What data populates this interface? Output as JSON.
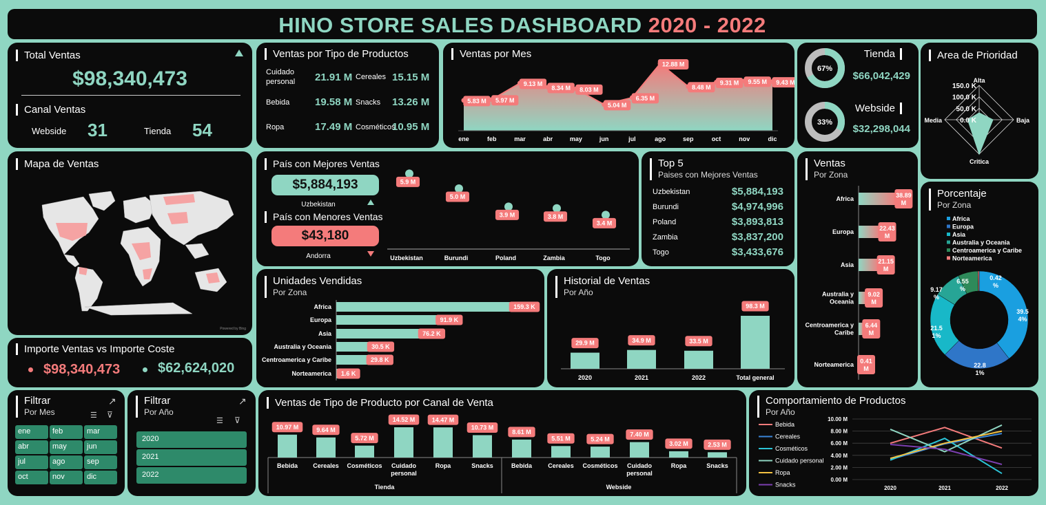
{
  "title": {
    "main": "HINO STORE SALES DASHBOARD",
    "years": "2020 - 2022"
  },
  "colors": {
    "mint": "#8fd6c2",
    "pink": "#f47b7b",
    "panel": "#0b0b0b",
    "frame": "#8fd6c2"
  },
  "total": {
    "header": "Total Ventas",
    "value": "$98,340,473",
    "trend_icon": "triangle-up-icon",
    "canal_header": "Canal Ventas",
    "webside_label": "Webside",
    "webside_value": "31",
    "tienda_label": "Tienda",
    "tienda_value": "54"
  },
  "tipo": {
    "header": "Ventas por Tipo de Productos",
    "items": [
      {
        "label": "Cuidado personal",
        "value": "21.91 M"
      },
      {
        "label": "Cereales",
        "value": "15.15 M"
      },
      {
        "label": "Bebida",
        "value": "19.58 M"
      },
      {
        "label": "Snacks",
        "value": "13.26 M"
      },
      {
        "label": "Ropa",
        "value": "17.49 M"
      },
      {
        "label": "Cosméticos",
        "value": "10.95 M"
      }
    ]
  },
  "canal_cards": [
    {
      "label": "Tienda",
      "pct": "67%",
      "value": "$66,042,429",
      "fraction": 0.67
    },
    {
      "label": "Webside",
      "pct": "33%",
      "value": "$32,298,044",
      "fraction": 0.33
    }
  ],
  "mapa": {
    "header": "Mapa de Ventas",
    "credit": "Powered by Bing"
  },
  "importe": {
    "header": "Importe Ventas vs Importe Coste",
    "ventas": "$98,340,473",
    "coste": "$62,624,020"
  },
  "mejores": {
    "header_best": "País con Mejores Ventas",
    "best_value": "$5,884,193",
    "best_country": "Uzbekistan",
    "header_worst": "País con Menores Ventas",
    "worst_value": "$43,180",
    "worst_country": "Andorra"
  },
  "top5": {
    "header": "Top 5",
    "subheader": "Paises con Mejores Ventas",
    "rows": [
      {
        "country": "Uzbekistan",
        "value": "$5,884,193"
      },
      {
        "country": "Burundi",
        "value": "$4,974,996"
      },
      {
        "country": "Poland",
        "value": "$3,893,813"
      },
      {
        "country": "Zambia",
        "value": "$3,837,200"
      },
      {
        "country": "Togo",
        "value": "$3,433,676"
      }
    ]
  },
  "zona": {
    "header": "Ventas",
    "subheader": "Por Zona"
  },
  "unidades": {
    "header": "Unidades Vendidas",
    "subheader": "Por Zona"
  },
  "historial": {
    "header": "Historial de Ventas",
    "subheader": "Por Año"
  },
  "prioridad": {
    "header": "Area de Prioridad"
  },
  "porcentaje": {
    "header": "Porcentaje",
    "subheader": "Por Zona"
  },
  "filtro_mes": {
    "header": "Filtrar",
    "subheader": "Por Mes",
    "months": [
      "ene",
      "feb",
      "mar",
      "abr",
      "may",
      "jun",
      "jul",
      "ago",
      "sep",
      "oct",
      "nov",
      "dic"
    ]
  },
  "filtro_anio": {
    "header": "Filtrar",
    "subheader": "Por Año",
    "years": [
      "2020",
      "2021",
      "2022"
    ]
  },
  "canal_venta": {
    "header": "Ventas de Tipo de Producto por Canal de Venta"
  },
  "comportamiento": {
    "header": "Comportamiento de Productos",
    "subheader": "Por Año"
  },
  "chart_data": [
    {
      "id": "ventas_mes",
      "title": "Ventas por Mes",
      "type": "area",
      "categories": [
        "ene",
        "feb",
        "mar",
        "abr",
        "may",
        "jun",
        "jul",
        "ago",
        "sep",
        "oct",
        "nov",
        "dic"
      ],
      "values": [
        5.83,
        5.97,
        9.13,
        8.34,
        8.03,
        5.04,
        6.35,
        12.88,
        8.48,
        9.31,
        9.55,
        9.43
      ],
      "labels": [
        "5.83 M",
        "5.97 M",
        "9.13 M",
        "8.34 M",
        "8.03 M",
        "5.04 M",
        "6.35 M",
        "12.88 M",
        "8.48 M",
        "9.31 M",
        "9.55 M",
        "9.43 M"
      ],
      "ylim": [
        0,
        14
      ]
    },
    {
      "id": "paises",
      "type": "scatter",
      "categories": [
        "Uzbekistan",
        "Burundi",
        "Poland",
        "Zambia",
        "Togo"
      ],
      "values": [
        5.9,
        5.0,
        3.9,
        3.8,
        3.4
      ],
      "labels": [
        "5.9 M",
        "5.0 M",
        "3.9 M",
        "3.8 M",
        "3.4 M"
      ]
    },
    {
      "id": "ventas_zona",
      "type": "bar",
      "orientation": "horizontal",
      "categories": [
        "Africa",
        "Europa",
        "Asia",
        "Australia y Oceania",
        "Centroamerica y Caribe",
        "Norteamerica"
      ],
      "values": [
        38.89,
        22.43,
        21.15,
        9.02,
        6.44,
        0.41
      ],
      "labels": [
        "38.89 M",
        "22.43 M",
        "21.15 M",
        "9.02 M",
        "6.44 M",
        "0.41 M"
      ]
    },
    {
      "id": "unidades",
      "type": "bar",
      "orientation": "horizontal",
      "categories": [
        "Africa",
        "Europa",
        "Asia",
        "Australia y Oceania",
        "Centroamerica y Caribe",
        "Norteamerica"
      ],
      "values": [
        159.3,
        91.9,
        76.2,
        30.5,
        29.8,
        1.6
      ],
      "labels": [
        "159.3 K",
        "91.9 K",
        "76.2 K",
        "30.5 K",
        "29.8 K",
        "1.6 K"
      ]
    },
    {
      "id": "historial",
      "type": "bar",
      "categories": [
        "2020",
        "2021",
        "2022",
        "Total general"
      ],
      "values": [
        29.9,
        34.9,
        33.5,
        98.3
      ],
      "labels": [
        "29.9 M",
        "34.9 M",
        "33.5 M",
        "98.3 M"
      ]
    },
    {
      "id": "prioridad",
      "type": "radar",
      "categories": [
        "Alta",
        "Baja",
        "Critica",
        "Media"
      ],
      "tick_labels": [
        "150.0 K",
        "100.0 K",
        "50.0 K",
        "0.0 K"
      ],
      "values": [
        30,
        60,
        150,
        50
      ]
    },
    {
      "id": "porcentaje",
      "type": "pie",
      "categories": [
        "Africa",
        "Europa",
        "Asia",
        "Australia y Oceania",
        "Centroamerica y Caribe",
        "Norteamerica"
      ],
      "values": [
        39.54,
        22.81,
        21.51,
        9.17,
        6.55,
        0.42
      ],
      "labels": [
        "39.5 4%",
        "22.8 1%",
        "21.5 1%",
        "9.17 %",
        "6.55 %",
        "0.42 %"
      ],
      "colors": [
        "#1a9fe0",
        "#2f76c8",
        "#18b8c8",
        "#27a596",
        "#2e8a5a",
        "#f47b7b"
      ]
    },
    {
      "id": "canal_venta",
      "type": "bar",
      "groups": [
        {
          "name": "Tienda",
          "categories": [
            "Bebida",
            "Cereales",
            "Cosméticos",
            "Cuidado personal",
            "Ropa",
            "Snacks"
          ],
          "values": [
            10.97,
            9.64,
            5.72,
            14.52,
            14.47,
            10.73
          ],
          "labels": [
            "10.97 M",
            "9.64 M",
            "5.72 M",
            "14.52 M",
            "14.47 M",
            "10.73 M"
          ]
        },
        {
          "name": "Webside",
          "categories": [
            "Bebida",
            "Cereales",
            "Cosméticos",
            "Cuidado personal",
            "Ropa",
            "Snacks"
          ],
          "values": [
            8.61,
            5.51,
            5.24,
            7.4,
            3.02,
            2.53
          ],
          "labels": [
            "8.61 M",
            "5.51 M",
            "5.24 M",
            "7.40 M",
            "3.02 M",
            "2.53 M"
          ]
        }
      ]
    },
    {
      "id": "comportamiento",
      "type": "line",
      "x": [
        "2020",
        "2021",
        "2022"
      ],
      "y_ticks": [
        "0.00 M",
        "2.00 M",
        "4.00 M",
        "6.00 M",
        "8.00 M",
        "10.00 M"
      ],
      "ylim": [
        0,
        10
      ],
      "series": [
        {
          "name": "Bebida",
          "color": "#f47b7b",
          "values": [
            6.0,
            8.6,
            5.2
          ]
        },
        {
          "name": "Cereales",
          "color": "#3a86d8",
          "values": [
            3.3,
            5.9,
            7.6
          ]
        },
        {
          "name": "Cosméticos",
          "color": "#2cc5d8",
          "values": [
            3.2,
            6.8,
            1.0
          ]
        },
        {
          "name": "Cuidado personal",
          "color": "#8fd6c2",
          "values": [
            8.3,
            4.6,
            9.0
          ]
        },
        {
          "name": "Ropa",
          "color": "#f5c242",
          "values": [
            3.5,
            6.0,
            8.0
          ]
        },
        {
          "name": "Snacks",
          "color": "#7b3fb0",
          "values": [
            5.8,
            5.0,
            2.5
          ]
        }
      ]
    }
  ]
}
